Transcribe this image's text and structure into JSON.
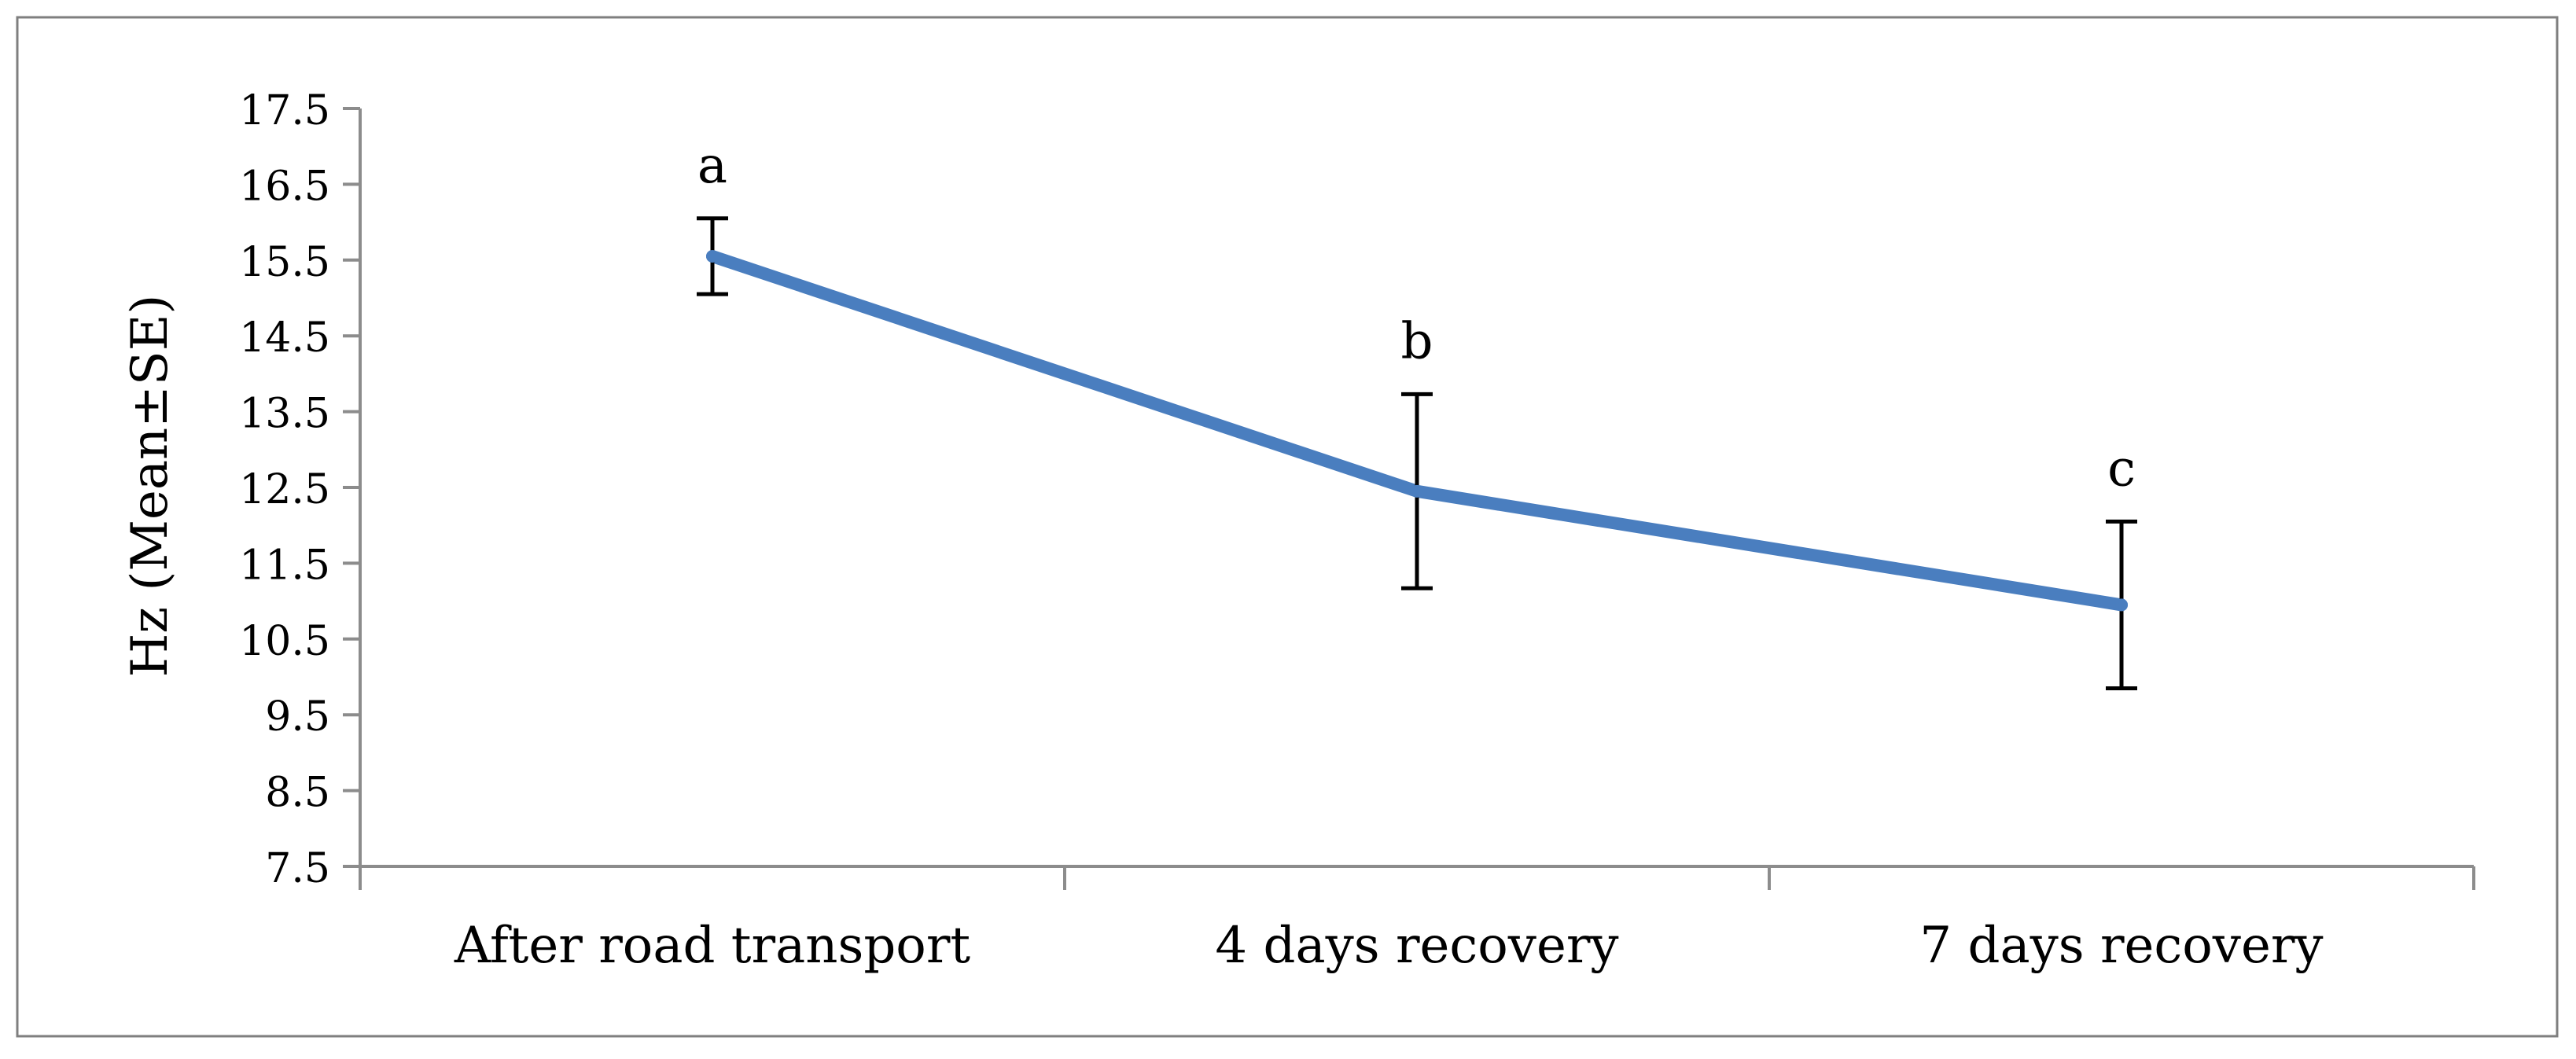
{
  "chart_data": {
    "type": "line",
    "title": "",
    "xlabel": "",
    "ylabel": "Hz (Mean±SE)",
    "categories": [
      "After road transport",
      "4 days recovery",
      "7 days recovery"
    ],
    "series": [
      {
        "name": "Hz",
        "values": [
          15.55,
          12.45,
          10.95
        ],
        "errors": [
          0.5,
          1.28,
          1.1
        ],
        "labels": [
          "a",
          "b",
          "c"
        ],
        "color": "#4a7ebf"
      }
    ],
    "ylim": [
      7.5,
      17.5
    ],
    "yticks": [
      "7.5",
      "8.5",
      "9.5",
      "10.5",
      "11.5",
      "12.5",
      "13.5",
      "14.5",
      "15.5",
      "16.5",
      "17.5"
    ],
    "grid": false,
    "legend": "none",
    "colors": {
      "line": "#4a7ebf",
      "axis": "#8c8c8c",
      "frame": "#7f7f7f",
      "errorbar": "#000000"
    }
  }
}
